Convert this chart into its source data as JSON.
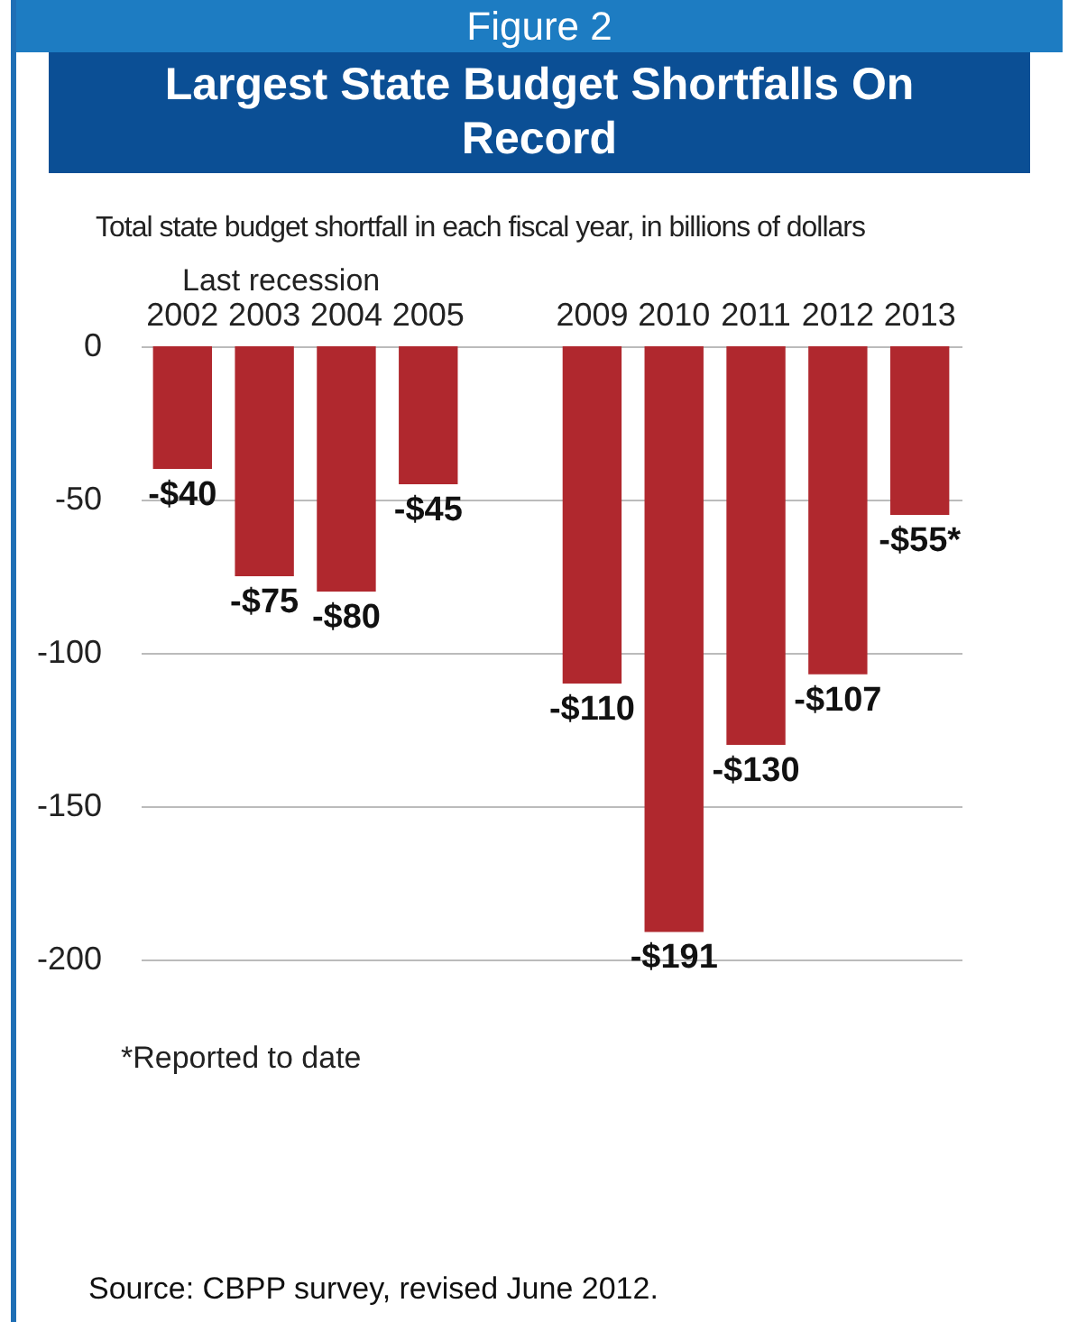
{
  "chart_data": {
    "type": "bar",
    "title": "Figure 2",
    "subtitle": "Largest State Budget Shortfalls On Record",
    "ylabel": "Total state budget shortfall in each fiscal year, in billions of dollars",
    "categories": [
      "2002",
      "2003",
      "2004",
      "2005",
      null,
      "2009",
      "2010",
      "2011",
      "2012",
      "2013"
    ],
    "values": [
      -40,
      -75,
      -80,
      -45,
      null,
      -110,
      -191,
      -130,
      -107,
      -55
    ],
    "value_labels": [
      "-$40",
      "-$75",
      "-$80",
      "-$45",
      null,
      "-$110",
      "-$191",
      "-$130",
      "-$107",
      "-$55*"
    ],
    "color": "#b0282e",
    "ylim": [
      -200,
      0
    ],
    "yticks": [
      0,
      -50,
      -100,
      -150,
      -200
    ],
    "grid": "y",
    "annotations": [
      "Last recession",
      "*Reported to date",
      "Source: CBPP survey, revised June 2012."
    ]
  }
}
